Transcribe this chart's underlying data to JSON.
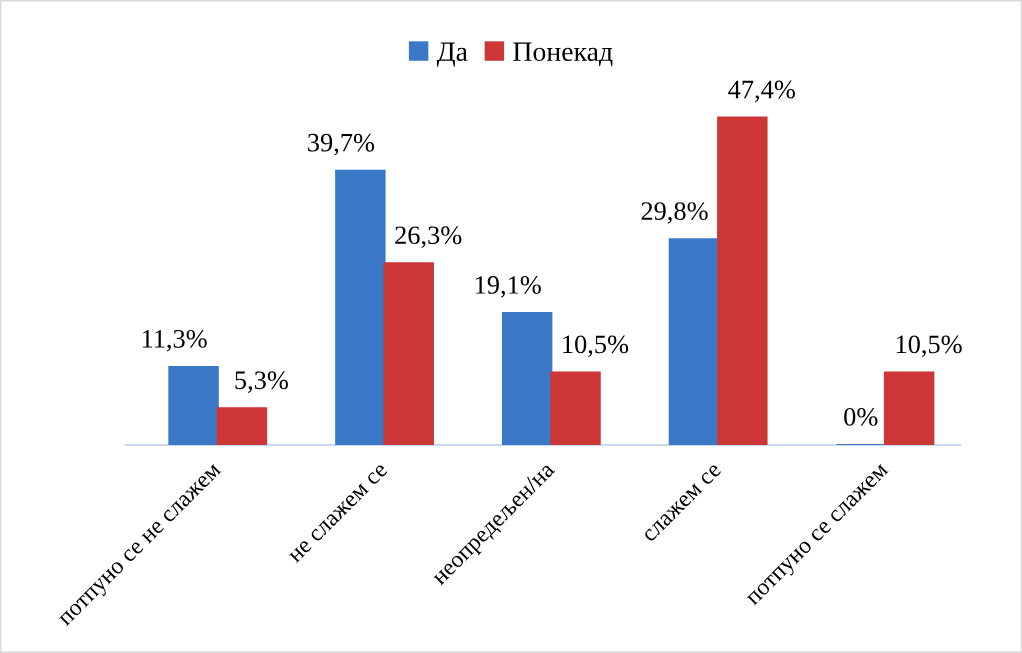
{
  "chart_data": {
    "type": "bar",
    "categories": [
      "потпуно се не слажем",
      "не слажем се",
      "неопредељен/на",
      "слажем се",
      "потпуно се слажем"
    ],
    "series": [
      {
        "name": "Да",
        "color": "#3b78c8",
        "values": [
          11.3,
          39.7,
          19.1,
          29.8,
          0
        ],
        "value_labels": [
          "11,3%",
          "39,7%",
          "19,1%",
          "29,8%",
          "0%"
        ]
      },
      {
        "name": "Понекад",
        "color": "#cc3636",
        "values": [
          5.3,
          26.3,
          10.5,
          47.4,
          10.5
        ],
        "value_labels": [
          "5,3%",
          "26,3%",
          "10,5%",
          "47,4%",
          "10,5%"
        ]
      }
    ],
    "legend": "top",
    "tick_labels": "x"
  }
}
